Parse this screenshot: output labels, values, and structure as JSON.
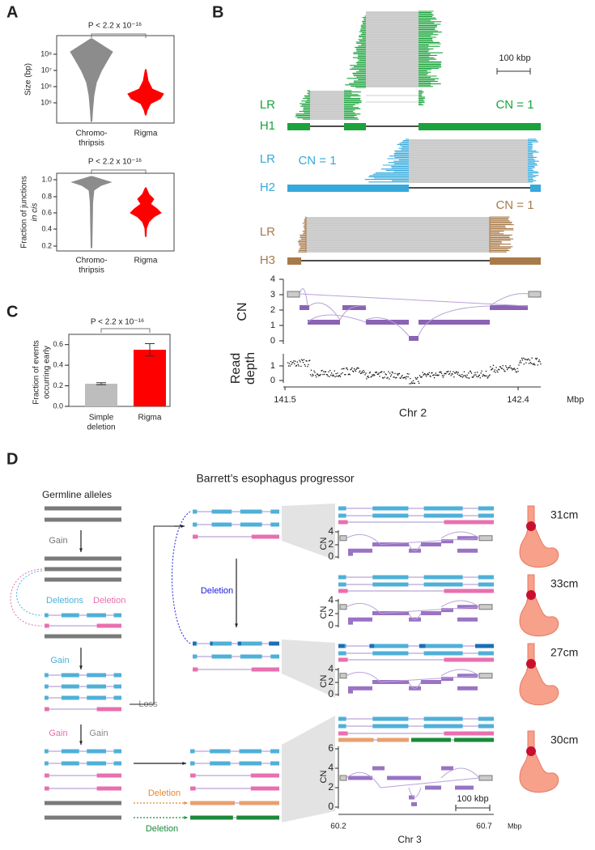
{
  "panel_labels": [
    "A",
    "B",
    "C",
    "D"
  ],
  "panel_a": {
    "top": {
      "title": "P < 2.2 x 10⁻¹⁶",
      "ylabel": "Size (bp)",
      "yticks": [
        "10⁸",
        "10⁷",
        "10⁶",
        "10⁵"
      ],
      "categories": [
        [
          "Chromo-",
          "thripsis"
        ],
        "Rigma"
      ]
    },
    "bottom": {
      "title": "P < 2.2 x 10⁻¹⁶",
      "ylabel": [
        "Fraction of junctions",
        "in cis"
      ],
      "yticks": [
        "1.0",
        "0.8",
        "0.6",
        "0.4",
        "0.2"
      ],
      "categories": [
        [
          "Chromo-",
          "thripsis"
        ],
        "Rigma"
      ]
    }
  },
  "panel_b": {
    "scale": "100 kbp",
    "tracks": [
      {
        "read_label": "LR",
        "hap_label": "H1",
        "cn_label": "CN = 1"
      },
      {
        "read_label": "LR",
        "hap_label": "H2",
        "cn_label": "CN = 1"
      },
      {
        "read_label": "LR",
        "hap_label": "H3",
        "cn_label": "CN = 1"
      }
    ],
    "cn_axis": {
      "label": "CN",
      "ticks": [
        "4",
        "3",
        "2",
        "1",
        "0"
      ]
    },
    "depth_axis": {
      "label": [
        "Read",
        "depth"
      ],
      "ticks": [
        "1",
        "0"
      ]
    },
    "xticks": [
      "141.5",
      "142.4"
    ],
    "x_unit": "Mbp",
    "xlabel": "Chr 2"
  },
  "chart_data": {
    "type": "bar",
    "title": "P < 2.2 x 10⁻¹⁶",
    "ylabel": [
      "Fraction of events",
      "occurring early"
    ],
    "categories": [
      [
        "Simple",
        "deletion"
      ],
      "Rigma"
    ],
    "values": [
      0.22,
      0.55
    ],
    "errors": [
      0.01,
      0.06
    ],
    "colors": [
      "#bdbdbd",
      "#ff0000"
    ],
    "ylim": [
      0,
      0.7
    ],
    "yticks": [
      {
        "value": 0,
        "label": "0.0"
      },
      0.2,
      0.4,
      0.6
    ]
  },
  "panel_d": {
    "title": "Barrett’s esophagus progressor",
    "germline": "Germline alleles",
    "steps": {
      "gain1": "Gain",
      "deletions": "Deletions",
      "deletion_pink": "Deletion",
      "gain2": "Gain",
      "loss": "Loss",
      "gain_pink": "Gain",
      "gain_gray": "Gain",
      "deletion_blue": "Deletion",
      "deletion_orange": "Deletion",
      "deletion_green": "Deletion"
    },
    "samples": [
      {
        "location": "31cm",
        "cn_label": "CN",
        "cn_ticks": [
          "4",
          "2",
          "0"
        ]
      },
      {
        "location": "33cm",
        "cn_label": "CN",
        "cn_ticks": [
          "4",
          "2",
          "0"
        ]
      },
      {
        "location": "27cm",
        "cn_label": "CN",
        "cn_ticks": [
          "4",
          "2",
          "0"
        ]
      },
      {
        "location": "30cm",
        "cn_label": "CN",
        "cn_ticks": [
          "6",
          "4",
          "2",
          "0"
        ]
      }
    ],
    "scale": "100 kbp",
    "xticks": [
      "60.2",
      "60.7"
    ],
    "x_unit": "Mbp",
    "xlabel": "Chr 3"
  }
}
